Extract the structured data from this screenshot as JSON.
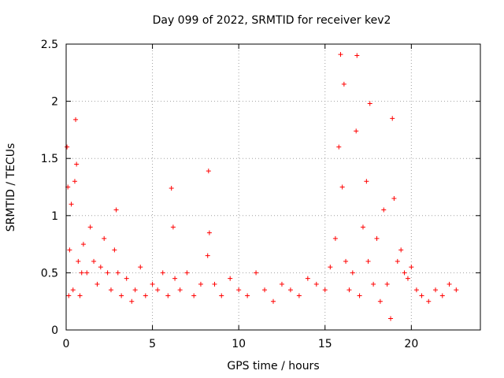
{
  "chart_data": {
    "type": "scatter",
    "title": "Day 099 of 2022, SRMTID for receiver kev2",
    "xlabel": "GPS time / hours",
    "ylabel": "SRMTID / TECUs",
    "xlim": [
      0,
      24
    ],
    "ylim": [
      0,
      2.5
    ],
    "x_ticks": [
      0,
      5,
      10,
      15,
      20
    ],
    "y_ticks": [
      0,
      0.5,
      1,
      1.5,
      2,
      2.5
    ],
    "grid": true,
    "marker": "+",
    "color": "#ff0000",
    "series": [
      {
        "name": "SRMTID",
        "x": [
          0.05,
          0.1,
          0.15,
          0.2,
          0.3,
          0.4,
          0.5,
          0.55,
          0.6,
          0.7,
          0.8,
          0.9,
          1.0,
          1.2,
          1.4,
          1.6,
          1.8,
          2.0,
          2.2,
          2.4,
          2.6,
          2.8,
          2.9,
          3.0,
          3.2,
          3.5,
          3.8,
          4.0,
          4.3,
          4.6,
          5.0,
          5.3,
          5.6,
          5.9,
          6.1,
          6.2,
          6.3,
          6.6,
          7.0,
          7.4,
          7.8,
          8.2,
          8.25,
          8.3,
          8.6,
          9.0,
          9.5,
          10.0,
          10.5,
          11.0,
          11.5,
          12.0,
          12.5,
          13.0,
          13.5,
          14.0,
          14.5,
          15.0,
          15.3,
          15.6,
          15.8,
          15.9,
          16.0,
          16.1,
          16.2,
          16.4,
          16.6,
          16.8,
          16.85,
          17.0,
          17.2,
          17.4,
          17.5,
          17.6,
          17.8,
          18.0,
          18.2,
          18.4,
          18.6,
          18.8,
          18.9,
          19.0,
          19.2,
          19.4,
          19.6,
          19.8,
          20.0,
          20.3,
          20.6,
          21.0,
          21.4,
          21.8,
          22.2,
          22.6
        ],
        "y": [
          1.6,
          1.25,
          0.3,
          0.7,
          1.1,
          0.35,
          1.3,
          1.84,
          1.45,
          0.6,
          0.3,
          0.5,
          0.75,
          0.5,
          0.9,
          0.6,
          0.4,
          0.55,
          0.8,
          0.5,
          0.35,
          0.7,
          1.05,
          0.5,
          0.3,
          0.45,
          0.25,
          0.35,
          0.55,
          0.3,
          0.4,
          0.35,
          0.5,
          0.3,
          1.24,
          0.9,
          0.45,
          0.35,
          0.5,
          0.3,
          0.4,
          0.65,
          1.39,
          0.85,
          0.4,
          0.3,
          0.45,
          0.35,
          0.3,
          0.5,
          0.35,
          0.25,
          0.4,
          0.35,
          0.3,
          0.45,
          0.4,
          0.35,
          0.55,
          0.8,
          1.6,
          2.41,
          1.25,
          2.15,
          0.6,
          0.35,
          0.5,
          1.74,
          2.4,
          0.3,
          0.9,
          1.3,
          0.6,
          1.98,
          0.4,
          0.8,
          0.25,
          1.05,
          0.4,
          0.1,
          1.85,
          1.15,
          0.6,
          0.7,
          0.5,
          0.45,
          0.55,
          0.35,
          0.3,
          0.25,
          0.35,
          0.3,
          0.4,
          0.35
        ]
      }
    ]
  }
}
